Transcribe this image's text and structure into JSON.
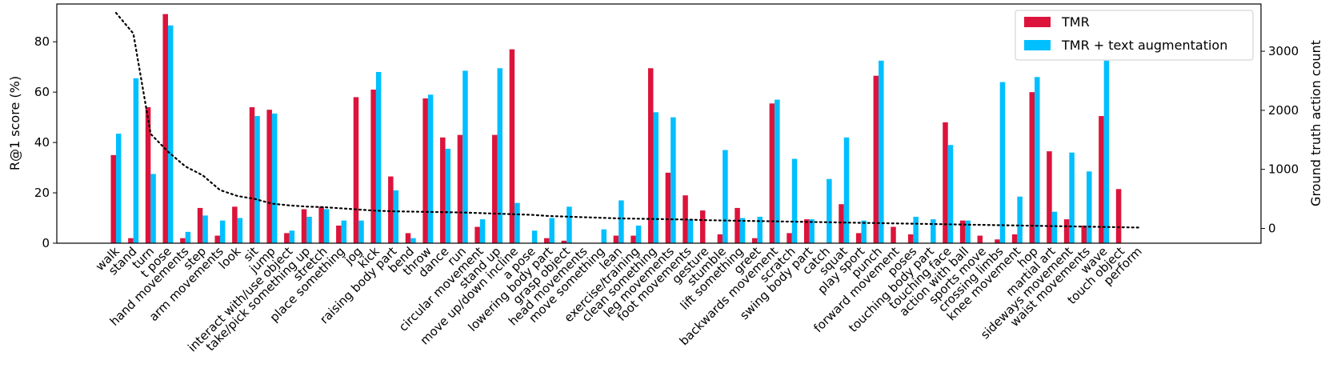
{
  "chart_data": {
    "type": "bar",
    "title": "",
    "xlabel": "",
    "ylabel": "R@1 score (%)",
    "ylabel_right": "Ground truth action count",
    "ylim": [
      0,
      95
    ],
    "yticks": [
      0,
      20,
      40,
      60,
      80
    ],
    "ylim_right": [
      -250,
      3800
    ],
    "yticks_right": [
      0,
      1000,
      2000,
      3000
    ],
    "legend_position": "top-right",
    "categories": [
      "walk",
      "stand",
      "turn",
      "t pose",
      "hand movements",
      "step",
      "arm movements",
      "look",
      "sit",
      "jump",
      "interact with/use object",
      "take/pick something up",
      "stretch",
      "place something",
      "jog",
      "kick",
      "raising body part",
      "bend",
      "throw",
      "dance",
      "run",
      "circular movement",
      "stand up",
      "move up/down incline",
      "a pose",
      "lowering body part",
      "grasp object",
      "head movements",
      "move something",
      "lean",
      "exercise/training",
      "clean something",
      "leg movements",
      "foot movements",
      "gesture",
      "stumble",
      "lift something",
      "greet",
      "backwards movement",
      "scratch",
      "swing body part",
      "catch",
      "squat",
      "play sport",
      "punch",
      "forward movement",
      "poses",
      "touching body part",
      "touching face",
      "action with ball",
      "sports move",
      "crossing limbs",
      "knee movement",
      "hop",
      "martial art",
      "sideways movement",
      "waist movements",
      "wave",
      "touch object",
      "perform"
    ],
    "series": [
      {
        "name": "TMR",
        "color": "#dc143c",
        "values": [
          35,
          2,
          54,
          91,
          2,
          14,
          3,
          14.5,
          54,
          53,
          4,
          13.5,
          14.5,
          7,
          58,
          61,
          26.5,
          4,
          57.5,
          42,
          43,
          6.5,
          43,
          77,
          0,
          2,
          1,
          0,
          0,
          3,
          3,
          69.5,
          28,
          19,
          13,
          3.5,
          14,
          2,
          55.5,
          4,
          9.5,
          0,
          15.5,
          4,
          66.5,
          6.5,
          3.5,
          0,
          48,
          9,
          3,
          1.5,
          3.5,
          60,
          36.5,
          9.5,
          7,
          50.5,
          21.5,
          0
        ]
      },
      {
        "name": "TMR + text augmentation",
        "color": "#00bfff",
        "values": [
          43.5,
          65.5,
          27.5,
          86.5,
          4.5,
          11,
          9,
          10,
          50.5,
          51.5,
          5,
          10.5,
          13.5,
          9,
          9,
          68,
          21,
          2,
          59,
          37.5,
          68.5,
          9.5,
          69.5,
          16,
          5,
          10,
          14.5,
          0,
          5.5,
          17,
          7,
          52,
          50,
          9.5,
          0,
          37,
          10,
          10.5,
          57,
          33.5,
          9.5,
          25.5,
          42,
          9,
          72.5,
          0,
          10.5,
          9.5,
          39,
          9,
          0,
          64,
          18.5,
          66,
          12.5,
          36,
          28.5,
          72.5,
          0,
          0
        ]
      },
      {
        "name": "Ground truth action count",
        "axis": "right",
        "style": "dotted",
        "color": "#000000",
        "values": [
          3650,
          3300,
          1600,
          1300,
          1050,
          900,
          650,
          550,
          500,
          420,
          390,
          370,
          360,
          340,
          320,
          300,
          290,
          285,
          280,
          275,
          270,
          260,
          250,
          240,
          230,
          210,
          200,
          190,
          180,
          170,
          165,
          160,
          155,
          150,
          140,
          135,
          130,
          125,
          120,
          115,
          110,
          105,
          100,
          95,
          90,
          85,
          80,
          75,
          70,
          65,
          60,
          55,
          50,
          45,
          40,
          35,
          30,
          25,
          20,
          15
        ]
      }
    ]
  }
}
